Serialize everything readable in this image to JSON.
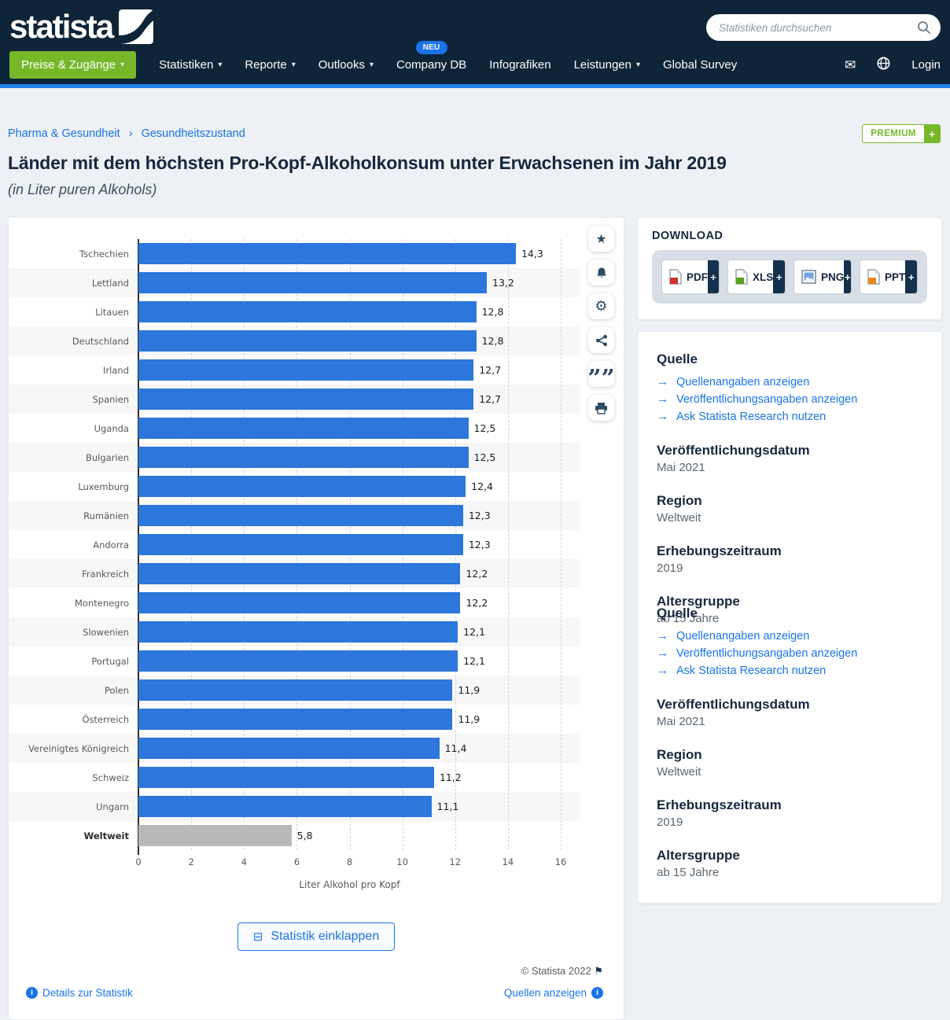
{
  "header": {
    "logo_text": "statista",
    "search": {
      "placeholder": "Statistiken durchsuchen"
    },
    "nav": [
      {
        "label": "Preise & Zugänge"
      },
      {
        "label": "Statistiken"
      },
      {
        "label": "Reporte"
      },
      {
        "label": "Outlooks"
      },
      {
        "label": "Company DB",
        "badge": "NEU"
      },
      {
        "label": "Infografiken"
      },
      {
        "label": "Leistungen"
      },
      {
        "label": "Global Survey"
      }
    ],
    "login_label": "Login"
  },
  "breadcrumb": {
    "items": [
      "Pharma & Gesundheit",
      "Gesundheitszustand"
    ]
  },
  "premium": {
    "label": "PREMIUM"
  },
  "page": {
    "title": "Länder mit dem höchsten Pro-Kopf-Alkoholkonsum unter Erwachsenen im Jahr 2019",
    "subtitle": "(in Liter puren Alkohols)"
  },
  "chart_data": {
    "type": "bar",
    "orientation": "horizontal",
    "title": "Länder mit dem höchsten Pro-Kopf-Alkoholkonsum unter Erwachsenen im Jahr 2019",
    "categories": [
      "Tschechien",
      "Lettland",
      "Litauen",
      "Deutschland",
      "Irland",
      "Spanien",
      "Uganda",
      "Bulgarien",
      "Luxemburg",
      "Rumänien",
      "Andorra",
      "Frankreich",
      "Montenegro",
      "Slowenien",
      "Portugal",
      "Polen",
      "Österreich",
      "Vereinigtes Königreich",
      "Schweiz",
      "Ungarn",
      "Weltweit"
    ],
    "values": [
      14.3,
      13.2,
      12.8,
      12.8,
      12.7,
      12.7,
      12.5,
      12.5,
      12.4,
      12.3,
      12.3,
      12.2,
      12.2,
      12.1,
      12.1,
      11.9,
      11.9,
      11.4,
      11.2,
      11.1,
      5.8
    ],
    "value_labels": [
      "14,3",
      "13,2",
      "12,8",
      "12,8",
      "12,7",
      "12,7",
      "12,5",
      "12,5",
      "12,4",
      "12,3",
      "12,3",
      "12,2",
      "12,2",
      "12,1",
      "12,1",
      "11,9",
      "11,9",
      "11,4",
      "11,2",
      "11,1",
      "5,8"
    ],
    "xlabel": "Liter Alkohol pro Kopf",
    "xlim": [
      0,
      16
    ],
    "xticks": [
      0,
      2,
      4,
      6,
      8,
      10,
      12,
      14,
      16
    ],
    "grid": "dashed-vertical",
    "bar_color": "#2c76dc",
    "highlight_category": "Weltweit",
    "highlight_color": "#b8b8b8"
  },
  "chart_ui": {
    "collapse_label": "Statistik einklappen",
    "copyright": "© Statista 2022",
    "sources_link": "Quellen anzeigen",
    "details_link": "Details zur Statistik",
    "action_icons": [
      "star",
      "bell",
      "gear",
      "share",
      "quote",
      "print"
    ]
  },
  "download": {
    "heading": "DOWNLOAD",
    "formats": [
      {
        "label": "PDF"
      },
      {
        "label": "XLS"
      },
      {
        "label": "PNG"
      },
      {
        "label": "PPT"
      }
    ]
  },
  "meta": {
    "source_heading": "Quelle",
    "source_links": [
      "Quellenangaben anzeigen",
      "Veröffentlichungsangaben anzeigen",
      "Ask Statista Research nutzen"
    ],
    "fields": [
      {
        "label": "Veröffentlichungsdatum",
        "value": "Mai 2021"
      },
      {
        "label": "Region",
        "value": "Weltweit"
      },
      {
        "label": "Erhebungszeitraum",
        "value": "2019"
      },
      {
        "label": "Altersgruppe",
        "value": "ab 15 Jahre"
      }
    ]
  }
}
